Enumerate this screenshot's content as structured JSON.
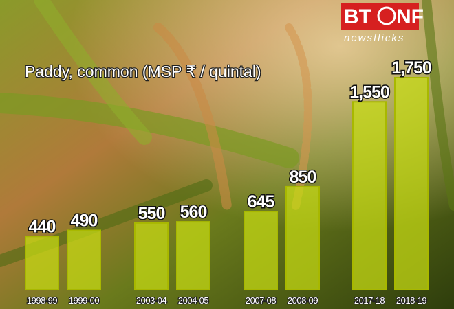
{
  "chart_data": {
    "type": "bar",
    "title": "Paddy, common (MSP ₹ / quintal)",
    "categories": [
      "1998-99",
      "1999-00",
      "2003-04",
      "2004-05",
      "2007-08",
      "2008-09",
      "2017-18",
      "2018-19"
    ],
    "values": [
      440,
      490,
      550,
      560,
      645,
      850,
      1550,
      1750
    ],
    "value_labels": [
      "440",
      "490",
      "550",
      "560",
      "645",
      "850",
      "1,550",
      "1,750"
    ],
    "color": "#c8dc14"
  },
  "logo": {
    "brand_left": "BT",
    "brand_right": "NF",
    "tagline": "newsflicks"
  }
}
